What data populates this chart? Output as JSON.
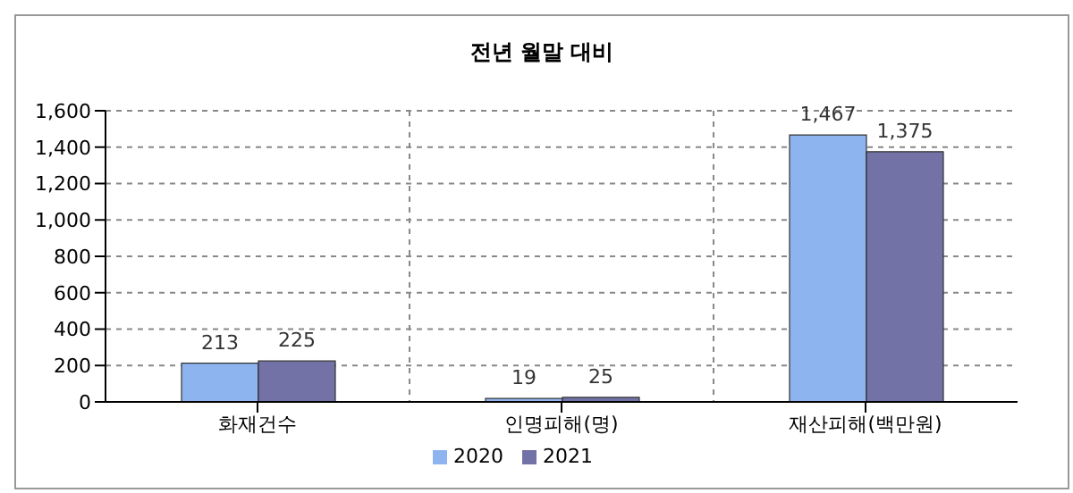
{
  "chart_data": {
    "type": "bar",
    "title": "전년 월말 대비",
    "categories": [
      "화재건수",
      "인명피해(명)",
      "재산피해(백만원)"
    ],
    "series": [
      {
        "name": "2020",
        "color": "#8db4ef",
        "values": [
          213,
          19,
          1467
        ],
        "value_labels": [
          "213",
          "19",
          "1,467"
        ]
      },
      {
        "name": "2021",
        "color": "#7272a6",
        "values": [
          225,
          25,
          1375
        ],
        "value_labels": [
          "225",
          "25",
          "1,375"
        ]
      }
    ],
    "ylim": [
      0,
      1600
    ],
    "yticks": [
      0,
      200,
      400,
      600,
      800,
      {
        "value": 1000,
        "label": "1,000"
      },
      {
        "value": 1200,
        "label": "1,200"
      },
      {
        "value": 1400,
        "label": "1,400"
      },
      {
        "value": 1600,
        "label": "1,600"
      }
    ],
    "grid": true,
    "legend": "bottom"
  }
}
